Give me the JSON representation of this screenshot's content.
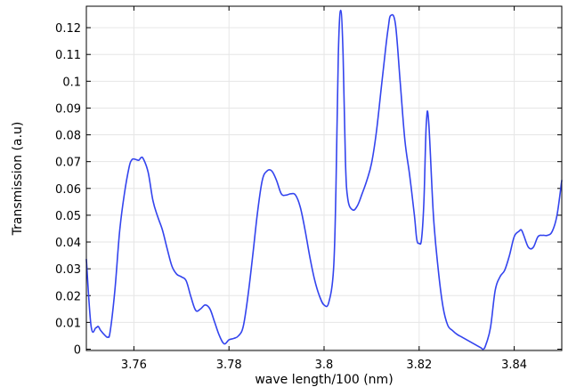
{
  "chart_data": {
    "type": "line",
    "xlabel": "wave length/100 (nm)",
    "ylabel": "Transmission (a.u)",
    "xlim": [
      3.75,
      3.85
    ],
    "ylim": [
      -0.0005,
      0.128
    ],
    "x_ticks": [
      3.76,
      3.78,
      3.8,
      3.82,
      3.84
    ],
    "x_tick_labels": [
      "3.76",
      "3.78",
      "3.8",
      "3.82",
      "3.84"
    ],
    "y_ticks": [
      0,
      0.01,
      0.02,
      0.03,
      0.04,
      0.05,
      0.06,
      0.07,
      0.08,
      0.09,
      0.1,
      0.11,
      0.12
    ],
    "y_tick_labels": [
      "0",
      "0.01",
      "0.02",
      "0.03",
      "0.04",
      "0.05",
      "0.06",
      "0.07",
      "0.08",
      "0.09",
      "0.1",
      "0.11",
      "0.12"
    ],
    "grid": true,
    "series": [
      {
        "color": "#3344ee",
        "x": [
          3.75,
          3.751,
          3.752,
          3.7525,
          3.753,
          3.754,
          3.7545,
          3.755,
          3.756,
          3.757,
          3.758,
          3.759,
          3.7595,
          3.76,
          3.761,
          3.7615,
          3.762,
          3.763,
          3.764,
          3.765,
          3.766,
          3.767,
          3.768,
          3.769,
          3.77,
          3.771,
          3.772,
          3.773,
          3.774,
          3.775,
          3.776,
          3.777,
          3.778,
          3.779,
          3.78,
          3.781,
          3.782,
          3.783,
          3.784,
          3.785,
          3.786,
          3.787,
          3.788,
          3.789,
          3.79,
          3.791,
          3.792,
          3.793,
          3.794,
          3.795,
          3.796,
          3.797,
          3.798,
          3.799,
          3.8,
          3.801,
          3.802,
          3.8025,
          3.803,
          3.8035,
          3.804,
          3.8045,
          3.805,
          3.806,
          3.807,
          3.808,
          3.809,
          3.81,
          3.811,
          3.812,
          3.813,
          3.8135,
          3.814,
          3.815,
          3.816,
          3.817,
          3.818,
          3.819,
          3.8195,
          3.82,
          3.8205,
          3.821,
          3.8215,
          3.822,
          3.823,
          3.824,
          3.825,
          3.826,
          3.827,
          3.828,
          3.829,
          3.83,
          3.831,
          3.832,
          3.833,
          3.8335,
          3.834,
          3.835,
          3.836,
          3.837,
          3.838,
          3.839,
          3.84,
          3.841,
          3.8415,
          3.842,
          3.843,
          3.844,
          3.845,
          3.846,
          3.847,
          3.848,
          3.849,
          3.85
        ],
        "y": [
          0.0335,
          0.0085,
          0.008,
          0.0085,
          0.007,
          0.005,
          0.0045,
          0.0065,
          0.022,
          0.044,
          0.058,
          0.068,
          0.0705,
          0.071,
          0.0705,
          0.0715,
          0.071,
          0.066,
          0.0555,
          0.0495,
          0.0445,
          0.0375,
          0.031,
          0.028,
          0.027,
          0.0255,
          0.0195,
          0.0145,
          0.015,
          0.0165,
          0.015,
          0.01,
          0.005,
          0.002,
          0.0035,
          0.004,
          0.005,
          0.0085,
          0.02,
          0.035,
          0.051,
          0.063,
          0.0665,
          0.0665,
          0.063,
          0.058,
          0.0575,
          0.058,
          0.0575,
          0.053,
          0.0445,
          0.0345,
          0.026,
          0.02,
          0.0165,
          0.0175,
          0.03,
          0.06,
          0.11,
          0.1265,
          0.11,
          0.07,
          0.056,
          0.052,
          0.0535,
          0.058,
          0.063,
          0.0695,
          0.081,
          0.097,
          0.113,
          0.12,
          0.1245,
          0.1215,
          0.1,
          0.078,
          0.065,
          0.05,
          0.041,
          0.0395,
          0.041,
          0.055,
          0.084,
          0.085,
          0.05,
          0.03,
          0.016,
          0.009,
          0.007,
          0.0055,
          0.0045,
          0.0035,
          0.0025,
          0.0015,
          0.0005,
          0.0,
          0.0015,
          0.008,
          0.022,
          0.027,
          0.0295,
          0.035,
          0.042,
          0.044,
          0.0445,
          0.0425,
          0.038,
          0.038,
          0.042,
          0.0425,
          0.0425,
          0.044,
          0.05,
          0.063
        ]
      }
    ]
  }
}
